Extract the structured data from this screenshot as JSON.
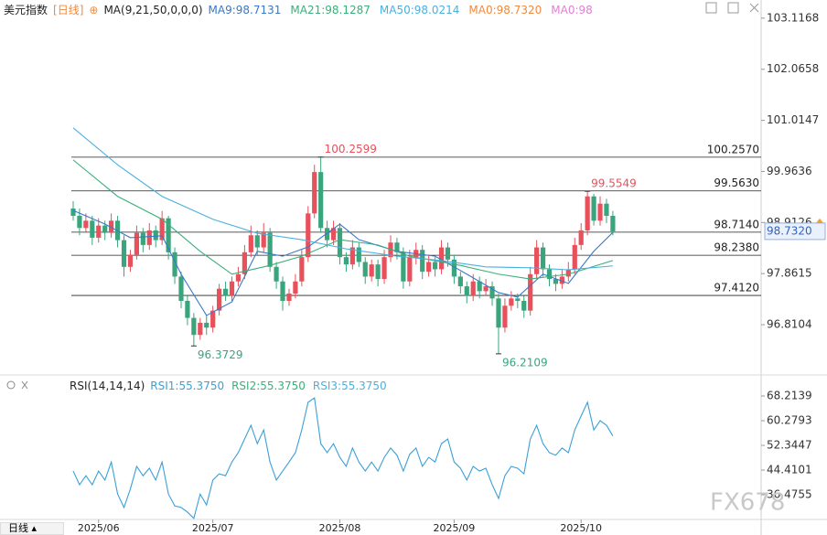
{
  "watermark": "FX678",
  "period_tab": "日线",
  "chart_data": [
    {
      "type": "candlestick",
      "title": "美元指数",
      "period": "[日线]",
      "indicator": "MA(9,21,50,0,0,0)",
      "up_color": "#e8505b",
      "down_color": "#3aa57c",
      "ylim": [
        95.87,
        103.34
      ],
      "yticks": [
        103.1168,
        102.0658,
        101.0147,
        99.9636,
        98.9126,
        97.8615,
        96.8104
      ],
      "ohlc": [
        [
          99.2,
          99.35,
          98.95,
          99.05
        ],
        [
          99.05,
          99.2,
          98.65,
          98.8
        ],
        [
          98.8,
          99.1,
          98.7,
          98.95
        ],
        [
          98.95,
          99.05,
          98.45,
          98.6
        ],
        [
          98.6,
          99.0,
          98.5,
          98.85
        ],
        [
          98.85,
          98.95,
          98.55,
          98.7
        ],
        [
          98.7,
          99.1,
          98.6,
          98.95
        ],
        [
          98.95,
          99.05,
          98.4,
          98.55
        ],
        [
          98.55,
          98.65,
          97.8,
          98.0
        ],
        [
          98.0,
          98.35,
          97.9,
          98.25
        ],
        [
          98.25,
          98.85,
          98.15,
          98.7
        ],
        [
          98.7,
          98.8,
          98.3,
          98.45
        ],
        [
          98.45,
          98.9,
          98.35,
          98.75
        ],
        [
          98.75,
          98.85,
          98.4,
          98.55
        ],
        [
          98.55,
          99.15,
          98.45,
          99.0
        ],
        [
          99.0,
          99.05,
          98.15,
          98.3
        ],
        [
          98.3,
          98.4,
          97.65,
          97.8
        ],
        [
          97.8,
          97.9,
          97.15,
          97.3
        ],
        [
          97.3,
          97.4,
          96.8,
          96.95
        ],
        [
          96.95,
          97.05,
          96.37,
          96.6
        ],
        [
          96.6,
          96.95,
          96.5,
          96.85
        ],
        [
          96.85,
          97.0,
          96.6,
          96.75
        ],
        [
          96.75,
          97.2,
          96.65,
          97.1
        ],
        [
          97.1,
          97.65,
          97.0,
          97.55
        ],
        [
          97.55,
          97.7,
          97.3,
          97.4
        ],
        [
          97.4,
          97.8,
          97.3,
          97.7
        ],
        [
          97.7,
          98.0,
          97.6,
          97.85
        ],
        [
          97.85,
          98.45,
          97.75,
          98.3
        ],
        [
          98.3,
          98.85,
          98.2,
          98.65
        ],
        [
          98.65,
          98.75,
          98.25,
          98.4
        ],
        [
          98.4,
          98.9,
          98.3,
          98.7
        ],
        [
          98.7,
          98.8,
          97.9,
          98.0
        ],
        [
          98.0,
          98.1,
          97.55,
          97.7
        ],
        [
          97.7,
          97.8,
          97.1,
          97.3
        ],
        [
          97.3,
          97.55,
          97.2,
          97.45
        ],
        [
          97.45,
          97.85,
          97.35,
          97.7
        ],
        [
          97.7,
          98.35,
          97.6,
          98.2
        ],
        [
          98.2,
          99.25,
          98.1,
          99.1
        ],
        [
          99.1,
          100.1,
          99.0,
          99.95
        ],
        [
          99.95,
          100.26,
          98.7,
          98.8
        ],
        [
          98.8,
          98.95,
          98.4,
          98.55
        ],
        [
          98.55,
          98.95,
          98.45,
          98.8
        ],
        [
          98.8,
          98.9,
          98.05,
          98.2
        ],
        [
          98.2,
          98.3,
          97.9,
          98.05
        ],
        [
          98.05,
          98.55,
          97.95,
          98.4
        ],
        [
          98.4,
          98.5,
          98.0,
          98.1
        ],
        [
          98.1,
          98.2,
          97.65,
          97.8
        ],
        [
          97.8,
          98.15,
          97.7,
          98.05
        ],
        [
          98.05,
          98.15,
          97.6,
          97.75
        ],
        [
          97.75,
          98.35,
          97.65,
          98.2
        ],
        [
          98.2,
          98.65,
          98.1,
          98.5
        ],
        [
          98.5,
          98.6,
          98.15,
          98.3
        ],
        [
          98.3,
          98.4,
          97.55,
          97.7
        ],
        [
          97.7,
          98.35,
          97.6,
          98.2
        ],
        [
          98.2,
          98.5,
          98.05,
          98.35
        ],
        [
          98.35,
          98.45,
          97.75,
          97.9
        ],
        [
          97.9,
          98.25,
          97.8,
          98.1
        ],
        [
          98.1,
          98.2,
          97.8,
          97.95
        ],
        [
          97.95,
          98.55,
          97.85,
          98.4
        ],
        [
          98.4,
          98.5,
          98.0,
          98.15
        ],
        [
          98.15,
          98.25,
          97.65,
          97.8
        ],
        [
          97.8,
          97.9,
          97.45,
          97.6
        ],
        [
          97.6,
          97.7,
          97.25,
          97.4
        ],
        [
          97.4,
          97.85,
          97.3,
          97.7
        ],
        [
          97.7,
          97.8,
          97.35,
          97.5
        ],
        [
          97.5,
          97.75,
          97.4,
          97.6
        ],
        [
          97.6,
          97.7,
          97.2,
          97.35
        ],
        [
          97.35,
          97.45,
          96.21,
          96.75
        ],
        [
          96.75,
          97.35,
          96.65,
          97.2
        ],
        [
          97.2,
          97.5,
          97.1,
          97.35
        ],
        [
          97.35,
          97.45,
          97.15,
          97.3
        ],
        [
          97.3,
          97.4,
          96.95,
          97.1
        ],
        [
          97.1,
          98.0,
          97.0,
          97.85
        ],
        [
          97.85,
          98.55,
          97.75,
          98.4
        ],
        [
          98.4,
          98.5,
          97.8,
          97.95
        ],
        [
          97.95,
          98.05,
          97.6,
          97.75
        ],
        [
          97.75,
          97.85,
          97.5,
          97.65
        ],
        [
          97.65,
          97.95,
          97.55,
          97.8
        ],
        [
          97.8,
          98.1,
          97.7,
          97.95
        ],
        [
          97.95,
          98.6,
          97.85,
          98.45
        ],
        [
          98.45,
          98.9,
          98.35,
          98.75
        ],
        [
          98.75,
          99.55,
          98.65,
          99.45
        ],
        [
          99.45,
          99.5,
          98.85,
          98.95
        ],
        [
          98.95,
          99.45,
          98.85,
          99.3
        ],
        [
          99.3,
          99.4,
          98.9,
          99.05
        ],
        [
          99.05,
          99.15,
          98.65,
          98.73
        ]
      ],
      "series": [
        {
          "name": "MA9:98.7131",
          "color": "#3a78c8",
          "x": [
            0,
            5,
            9,
            14,
            17,
            21,
            25,
            29,
            33,
            37,
            42,
            45,
            51,
            57,
            62,
            67,
            70,
            74,
            78,
            82,
            85
          ],
          "values": [
            99.16,
            98.88,
            98.6,
            98.64,
            97.85,
            97.0,
            97.28,
            98.32,
            98.22,
            98.41,
            98.88,
            98.56,
            98.32,
            98.22,
            97.85,
            97.47,
            97.38,
            97.85,
            97.66,
            98.32,
            98.71
          ]
        },
        {
          "name": "MA21:98.1287",
          "color": "#39b07a",
          "x": [
            0,
            7,
            14,
            20,
            25,
            31,
            36,
            42,
            48,
            53,
            61,
            67,
            72,
            78,
            85
          ],
          "values": [
            100.2,
            99.45,
            98.98,
            98.32,
            97.85,
            98.03,
            98.22,
            98.56,
            98.45,
            98.22,
            98.03,
            97.85,
            97.75,
            97.85,
            98.13
          ]
        },
        {
          "name": "MA50:98.0214",
          "color": "#4ab0e0",
          "x": [
            0,
            7,
            14,
            22,
            29,
            36,
            43,
            51,
            58,
            65,
            72,
            78,
            85
          ],
          "values": [
            100.86,
            100.1,
            99.45,
            98.98,
            98.69,
            98.56,
            98.37,
            98.22,
            98.13,
            98.0,
            97.98,
            97.94,
            98.02
          ]
        }
      ],
      "legend_extra": [
        {
          "name": "MA0:98.7320",
          "color": "#f08a3c"
        },
        {
          "name": "MA0:98",
          "color": "#e080d0"
        }
      ],
      "levels": [
        {
          "value": 100.257,
          "label": "100.2570"
        },
        {
          "value": 99.563,
          "label": "99.5630"
        },
        {
          "value": 98.714,
          "label": "98.7140"
        },
        {
          "value": 98.238,
          "label": "98.2380"
        },
        {
          "value": 97.412,
          "label": "97.4120"
        }
      ],
      "annotations": [
        {
          "x": 39,
          "value": 100.2599,
          "color": "#e8505b"
        },
        {
          "x": 81,
          "value": 99.5549,
          "color": "#e8505b"
        },
        {
          "x": 19,
          "value": 96.3729,
          "color": "#3aa57c"
        },
        {
          "x": 67,
          "value": 96.2109,
          "color": "#3aa57c"
        }
      ],
      "last_price": {
        "value": 98.732,
        "label": "98.7320"
      }
    },
    {
      "type": "line",
      "title": "RSI(14,14,14)",
      "ylim": [
        28.54,
        74.39
      ],
      "yticks": [
        68.2139,
        60.2793,
        52.3447,
        44.4101,
        36.4755
      ],
      "series": [
        {
          "name": "RSI1:55.3750",
          "color": "#3aa0d8",
          "values": [
            44.1,
            39.7,
            42.6,
            39.7,
            44.1,
            41.2,
            47.0,
            36.7,
            32.4,
            38.3,
            45.6,
            42.6,
            45.0,
            41.2,
            47.0,
            36.7,
            32.9,
            32.4,
            30.9,
            28.9,
            36.7,
            33.2,
            41.2,
            43.2,
            42.6,
            47.0,
            50.0,
            54.4,
            58.8,
            52.9,
            57.3,
            47.0,
            41.2,
            44.1,
            47.0,
            50.0,
            57.3,
            66.2,
            67.6,
            52.9,
            50.0,
            52.9,
            48.5,
            45.6,
            51.5,
            47.0,
            44.1,
            47.0,
            44.1,
            48.5,
            51.5,
            49.2,
            44.1,
            49.5,
            51.5,
            45.6,
            48.5,
            47.0,
            52.9,
            54.4,
            47.0,
            45.0,
            41.2,
            45.6,
            44.1,
            45.0,
            39.7,
            35.3,
            42.6,
            45.6,
            45.0,
            43.2,
            54.4,
            58.8,
            52.9,
            50.0,
            49.2,
            51.5,
            50.0,
            57.3,
            61.8,
            66.2,
            57.3,
            60.3,
            58.8,
            55.375
          ]
        }
      ],
      "legend_extra": [
        {
          "name": "RSI2:55.3750",
          "color": "#39b07a"
        },
        {
          "name": "RSI3:55.3750",
          "color": "#4ab0e0"
        }
      ],
      "xticks": [
        {
          "value": 4,
          "label": "2025/06"
        },
        {
          "value": 22,
          "label": "2025/07"
        },
        {
          "value": 42,
          "label": "2025/08"
        },
        {
          "value": 60,
          "label": "2025/09"
        },
        {
          "value": 80,
          "label": "2025/10"
        }
      ]
    }
  ]
}
